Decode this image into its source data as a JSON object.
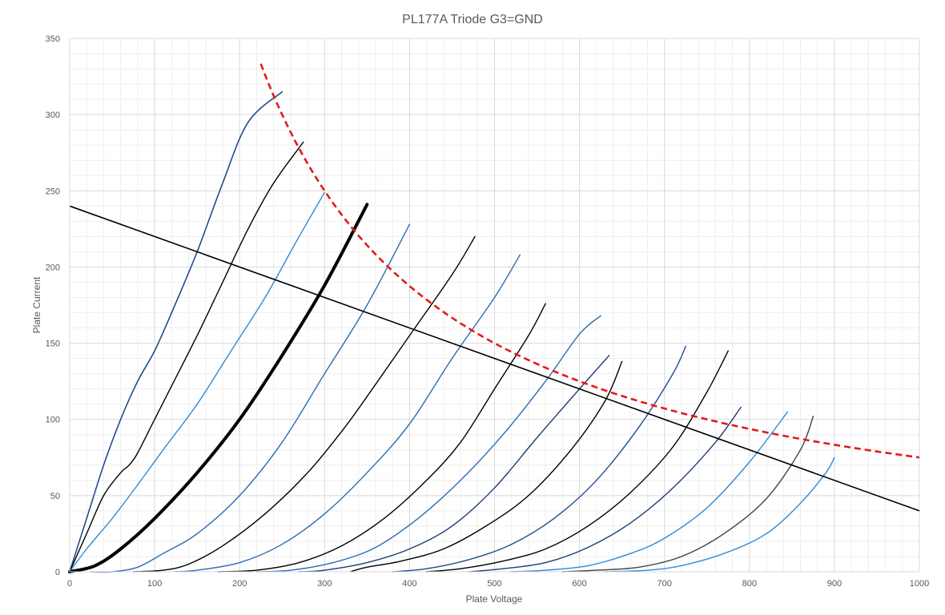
{
  "chart_data": {
    "type": "line",
    "title": "PL177A Triode G3=GND",
    "xlabel": "Plate Voltage",
    "ylabel": "Plate Current",
    "xlim": [
      0,
      1000
    ],
    "ylim": [
      0,
      350
    ],
    "xticks": [
      0,
      100,
      200,
      300,
      400,
      500,
      600,
      700,
      800,
      900,
      1000
    ],
    "yticks": [
      0,
      50,
      100,
      150,
      200,
      250,
      300,
      350
    ],
    "grid": {
      "major": true,
      "minor": true
    },
    "legend": "none",
    "colors": {
      "dark_blue": "#1f4e8c",
      "black": "#000000",
      "light_blue": "#2e8ad8",
      "mid_blue": "#2b6cb0",
      "navy": "#1a3f73",
      "dark_gray": "#404040",
      "dissipation": "#e31b1b",
      "load_line": "#000000",
      "grid_major": "#d9d9d9",
      "grid_minor": "#eeeeee"
    },
    "series": [
      {
        "color": "dark_blue",
        "width": 1.6,
        "points": [
          [
            0,
            0
          ],
          [
            20,
            35
          ],
          [
            40,
            70
          ],
          [
            60,
            100
          ],
          [
            80,
            125
          ],
          [
            100,
            145
          ],
          [
            120,
            170
          ],
          [
            150,
            210
          ],
          [
            180,
            255
          ],
          [
            210,
            295
          ],
          [
            250,
            315
          ]
        ]
      },
      {
        "color": "black",
        "width": 1.4,
        "points": [
          [
            0,
            0
          ],
          [
            20,
            25
          ],
          [
            40,
            50
          ],
          [
            60,
            65
          ],
          [
            70,
            70
          ],
          [
            80,
            78
          ],
          [
            100,
            100
          ],
          [
            120,
            122
          ],
          [
            150,
            155
          ],
          [
            180,
            190
          ],
          [
            210,
            225
          ],
          [
            240,
            255
          ],
          [
            275,
            282
          ]
        ]
      },
      {
        "color": "light_blue",
        "width": 1.4,
        "points": [
          [
            0,
            0
          ],
          [
            20,
            15
          ],
          [
            50,
            35
          ],
          [
            80,
            57
          ],
          [
            110,
            80
          ],
          [
            150,
            110
          ],
          [
            190,
            145
          ],
          [
            230,
            180
          ],
          [
            265,
            215
          ],
          [
            300,
            249
          ]
        ]
      },
      {
        "color": "black",
        "width": 4,
        "points": [
          [
            0,
            0
          ],
          [
            30,
            4
          ],
          [
            60,
            15
          ],
          [
            100,
            35
          ],
          [
            150,
            65
          ],
          [
            200,
            100
          ],
          [
            250,
            142
          ],
          [
            300,
            188
          ],
          [
            350,
            241
          ]
        ]
      },
      {
        "color": "mid_blue",
        "width": 1.4,
        "points": [
          [
            25,
            0
          ],
          [
            50,
            0
          ],
          [
            80,
            3
          ],
          [
            110,
            12
          ],
          [
            150,
            25
          ],
          [
            200,
            50
          ],
          [
            250,
            85
          ],
          [
            300,
            130
          ],
          [
            350,
            175
          ],
          [
            400,
            228
          ]
        ]
      },
      {
        "color": "black",
        "width": 1.4,
        "points": [
          [
            75,
            0
          ],
          [
            110,
            1
          ],
          [
            140,
            5
          ],
          [
            180,
            17
          ],
          [
            230,
            38
          ],
          [
            280,
            65
          ],
          [
            320,
            92
          ],
          [
            350,
            115
          ],
          [
            400,
            155
          ],
          [
            450,
            195
          ],
          [
            477,
            220
          ]
        ]
      },
      {
        "color": "mid_blue",
        "width": 1.4,
        "points": [
          [
            125,
            0
          ],
          [
            150,
            1
          ],
          [
            200,
            6
          ],
          [
            250,
            18
          ],
          [
            300,
            38
          ],
          [
            350,
            65
          ],
          [
            400,
            97
          ],
          [
            450,
            140
          ],
          [
            500,
            180
          ],
          [
            530,
            208
          ]
        ]
      },
      {
        "color": "black",
        "width": 1.4,
        "points": [
          [
            175,
            0
          ],
          [
            220,
            1
          ],
          [
            270,
            6
          ],
          [
            320,
            17
          ],
          [
            370,
            35
          ],
          [
            420,
            60
          ],
          [
            460,
            85
          ],
          [
            500,
            120
          ],
          [
            540,
            155
          ],
          [
            560,
            176
          ]
        ]
      },
      {
        "color": "mid_blue",
        "width": 1.4,
        "points": [
          [
            220,
            0
          ],
          [
            260,
            1
          ],
          [
            310,
            6
          ],
          [
            360,
            16
          ],
          [
            410,
            35
          ],
          [
            460,
            60
          ],
          [
            510,
            90
          ],
          [
            560,
            125
          ],
          [
            600,
            156
          ],
          [
            625,
            168
          ]
        ]
      },
      {
        "color": "navy",
        "width": 1.4,
        "points": [
          [
            270,
            0
          ],
          [
            300,
            1
          ],
          [
            350,
            6
          ],
          [
            400,
            15
          ],
          [
            450,
            30
          ],
          [
            500,
            55
          ],
          [
            550,
            88
          ],
          [
            600,
            120
          ],
          [
            635,
            142
          ]
        ]
      },
      {
        "color": "black",
        "width": 1.4,
        "points": [
          [
            330,
            0
          ],
          [
            350,
            3
          ],
          [
            390,
            7
          ],
          [
            440,
            15
          ],
          [
            490,
            30
          ],
          [
            540,
            50
          ],
          [
            590,
            80
          ],
          [
            630,
            112
          ],
          [
            650,
            138
          ]
        ]
      },
      {
        "color": "dark_blue",
        "width": 1.4,
        "points": [
          [
            380,
            0
          ],
          [
            420,
            2
          ],
          [
            470,
            8
          ],
          [
            520,
            18
          ],
          [
            570,
            35
          ],
          [
            620,
            60
          ],
          [
            670,
            95
          ],
          [
            710,
            130
          ],
          [
            725,
            148
          ]
        ]
      },
      {
        "color": "black",
        "width": 1.4,
        "points": [
          [
            420,
            0
          ],
          [
            460,
            2
          ],
          [
            510,
            7
          ],
          [
            560,
            15
          ],
          [
            610,
            30
          ],
          [
            660,
            52
          ],
          [
            710,
            82
          ],
          [
            750,
            118
          ],
          [
            775,
            145
          ]
        ]
      },
      {
        "color": "navy",
        "width": 1.4,
        "points": [
          [
            470,
            0
          ],
          [
            510,
            2
          ],
          [
            560,
            6
          ],
          [
            610,
            16
          ],
          [
            660,
            32
          ],
          [
            710,
            55
          ],
          [
            760,
            85
          ],
          [
            790,
            108
          ]
        ]
      },
      {
        "color": "light_blue",
        "width": 1.4,
        "points": [
          [
            520,
            0
          ],
          [
            560,
            1
          ],
          [
            610,
            4
          ],
          [
            660,
            12
          ],
          [
            700,
            22
          ],
          [
            750,
            42
          ],
          [
            800,
            72
          ],
          [
            845,
            105
          ]
        ]
      },
      {
        "color": "dark_gray",
        "width": 1.4,
        "points": [
          [
            580,
            0
          ],
          [
            620,
            1
          ],
          [
            670,
            3
          ],
          [
            720,
            10
          ],
          [
            770,
            25
          ],
          [
            820,
            48
          ],
          [
            860,
            80
          ],
          [
            875,
            102
          ]
        ]
      },
      {
        "color": "light_blue",
        "width": 1.4,
        "points": [
          [
            630,
            0
          ],
          [
            680,
            1
          ],
          [
            720,
            4
          ],
          [
            770,
            12
          ],
          [
            820,
            25
          ],
          [
            860,
            45
          ],
          [
            890,
            65
          ],
          [
            900,
            75
          ]
        ]
      }
    ],
    "load_line": {
      "points": [
        [
          0,
          240
        ],
        [
          1000,
          40
        ]
      ]
    },
    "dissipation_curve": {
      "power_w": 75,
      "x_range": [
        225,
        1000
      ]
    }
  }
}
